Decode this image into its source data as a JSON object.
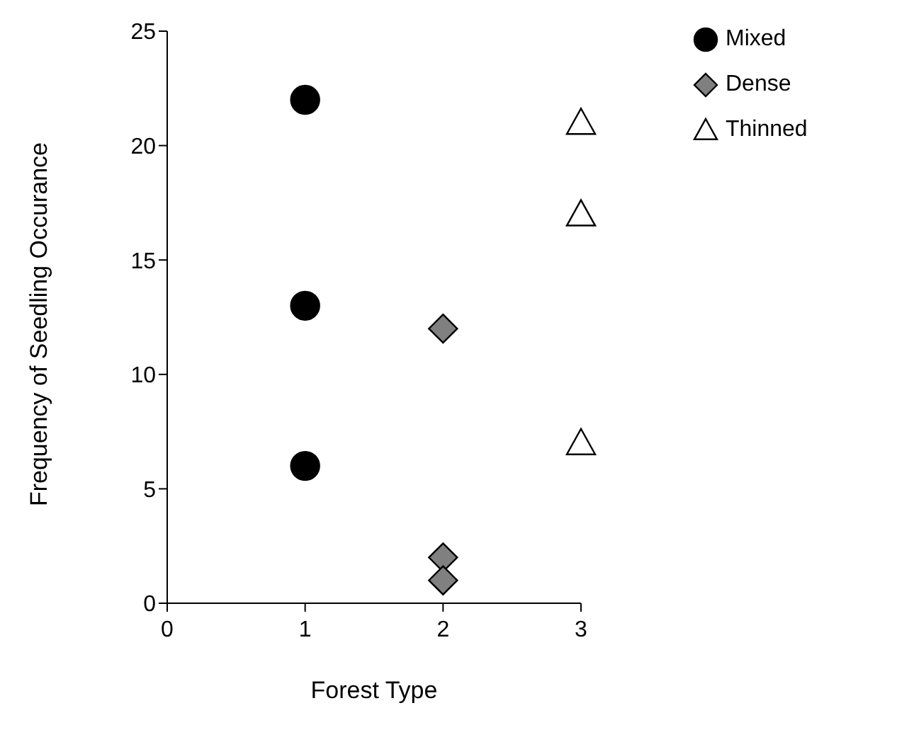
{
  "chart_data": {
    "type": "scatter",
    "xlabel": "Forest Type",
    "ylabel": "Frequency of Seedling Occurance",
    "xlim": [
      0,
      3
    ],
    "xticks": [
      0,
      1,
      2,
      3
    ],
    "ylim": [
      0,
      25
    ],
    "yticks": [
      0,
      5,
      10,
      15,
      20,
      25
    ],
    "grid": false,
    "legend": "top right",
    "series": [
      {
        "name": "Mixed",
        "color": "#000000",
        "marker": "circle",
        "x": [
          1,
          1,
          1
        ],
        "values": [
          22,
          13,
          6
        ]
      },
      {
        "name": "Dense",
        "color": "#808080",
        "marker": "diamond",
        "x": [
          2,
          2,
          2
        ],
        "values": [
          12,
          2,
          1
        ]
      },
      {
        "name": "Thinned",
        "color": "#ffffff",
        "marker": "triangle",
        "x": [
          3,
          3,
          3
        ],
        "values": [
          21,
          17,
          7
        ]
      }
    ]
  }
}
